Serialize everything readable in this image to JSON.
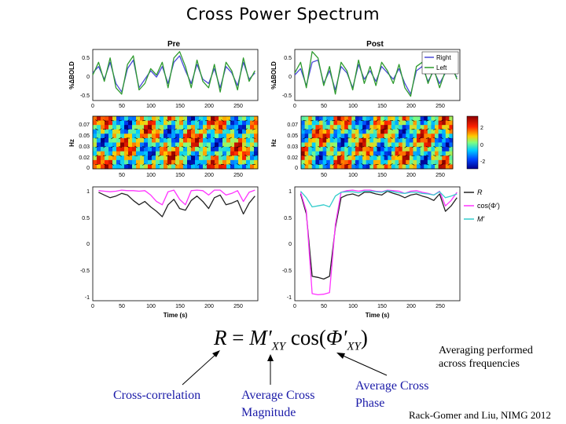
{
  "slide": {
    "title": "Cross Power Spectrum",
    "note_line1": "Averaging performed",
    "note_line2": "across frequencies",
    "label_cross_correlation": "Cross-correlation",
    "label_avg_mag_line1": "Average Cross",
    "label_avg_mag_line2": "Magnitude",
    "label_avg_phase_line1": "Average Cross",
    "label_avg_phase_line2": "Phase",
    "citation": "Rack-Gomer and Liu, NIMG 2012",
    "equation": {
      "lhs": "R",
      "eq": "=",
      "mag": "M′",
      "mag_sub": "XY",
      "cos": "cos(",
      "phi": "Φ′",
      "phi_sub": "XY",
      "close": ")"
    },
    "colors": {
      "annotation_blue": "#1a1aa8",
      "right": "#4a4ad8",
      "left": "#2e9a2e",
      "R": "#222222",
      "cos": "#ff33ff",
      "M": "#33cccc"
    }
  },
  "chart_data": [
    {
      "type": "line",
      "panel": "Pre",
      "title": "Pre",
      "ylabel": "%ΔBOLD",
      "xlim": [
        0,
        285
      ],
      "ylim": [
        -0.6,
        0.6
      ],
      "xticks": [
        "0",
        "50",
        "100",
        "150",
        "200",
        "250"
      ],
      "yticks": [
        "0.5",
        "0",
        "-0.5"
      ],
      "x": [
        0,
        10,
        20,
        30,
        40,
        50,
        60,
        70,
        80,
        90,
        100,
        110,
        120,
        130,
        140,
        150,
        160,
        170,
        180,
        190,
        200,
        210,
        220,
        230,
        240,
        250,
        260,
        270,
        280
      ],
      "series": [
        {
          "name": "Right",
          "values": [
            0.05,
            0.2,
            -0.1,
            0.3,
            -0.2,
            -0.4,
            0.15,
            0.35,
            -0.3,
            -0.1,
            0.1,
            -0.05,
            0.2,
            -0.2,
            0.3,
            0.45,
            0.1,
            -0.2,
            0.25,
            -0.1,
            -0.2,
            0.15,
            -0.3,
            0.2,
            0.05,
            -0.25,
            0.3,
            -0.1,
            0.05
          ]
        },
        {
          "name": "Left",
          "values": [
            0.0,
            0.3,
            -0.15,
            0.4,
            -0.3,
            -0.45,
            0.25,
            0.45,
            -0.35,
            -0.2,
            0.15,
            0.0,
            0.3,
            -0.3,
            0.4,
            0.55,
            0.2,
            -0.3,
            0.35,
            -0.15,
            -0.3,
            0.25,
            -0.4,
            0.3,
            0.1,
            -0.35,
            0.4,
            -0.15,
            0.1
          ]
        }
      ]
    },
    {
      "type": "line",
      "panel": "Post",
      "title": "Post",
      "ylabel": "%ΔBOLD",
      "xlim": [
        0,
        285
      ],
      "ylim": [
        -0.6,
        0.6
      ],
      "xticks": [
        "0",
        "50",
        "100",
        "150",
        "200",
        "250"
      ],
      "yticks": [
        "0.5",
        "0",
        "-0.5"
      ],
      "legend": [
        "Right",
        "Left"
      ],
      "x": [
        0,
        10,
        20,
        30,
        40,
        50,
        60,
        70,
        80,
        90,
        100,
        110,
        120,
        130,
        140,
        150,
        160,
        170,
        180,
        190,
        200,
        210,
        220,
        230,
        240,
        250,
        260,
        270,
        280
      ],
      "series": [
        {
          "name": "Right",
          "values": [
            0.0,
            0.15,
            -0.25,
            0.3,
            0.35,
            -0.2,
            0.1,
            -0.35,
            0.2,
            0.05,
            -0.3,
            0.25,
            -0.1,
            0.1,
            -0.15,
            0.2,
            0.05,
            -0.1,
            0.15,
            -0.2,
            -0.45,
            0.1,
            0.2,
            -0.15,
            0.1,
            -0.2,
            0.05,
            0.15,
            -0.05
          ]
        },
        {
          "name": "Left",
          "values": [
            0.05,
            0.3,
            -0.3,
            0.55,
            0.4,
            -0.25,
            0.2,
            -0.45,
            0.3,
            0.1,
            -0.35,
            0.35,
            -0.2,
            0.2,
            -0.25,
            0.3,
            0.1,
            -0.2,
            0.25,
            -0.3,
            -0.5,
            0.2,
            0.3,
            -0.2,
            0.15,
            -0.3,
            0.1,
            0.25,
            -0.1
          ]
        }
      ]
    },
    {
      "type": "heatmap",
      "panel": "Pre",
      "ylabel": "Hz",
      "xticks": [
        "50",
        "100",
        "150",
        "200",
        "250"
      ],
      "yticks": [
        "0.07",
        "0.05",
        "0.03",
        "0.02",
        "0"
      ],
      "colorbar": {
        "ticks": [
          "2",
          "0",
          "-2"
        ]
      }
    },
    {
      "type": "heatmap",
      "panel": "Post",
      "ylabel": "Hz",
      "xticks": [
        "50",
        "100",
        "150",
        "200",
        "250"
      ],
      "yticks": [
        "0.07",
        "0.05",
        "0.03",
        "0.02",
        "0"
      ]
    },
    {
      "type": "line",
      "panel": "Pre",
      "xlabel": "Time (s)",
      "xlim": [
        0,
        285
      ],
      "ylim": [
        -1.05,
        1.05
      ],
      "xticks": [
        "0",
        "50",
        "100",
        "150",
        "200",
        "250"
      ],
      "yticks": [
        "1",
        "0.5",
        "0",
        "-0.5",
        "-1"
      ],
      "x": [
        10,
        20,
        30,
        40,
        50,
        60,
        70,
        80,
        90,
        100,
        110,
        120,
        130,
        140,
        150,
        160,
        170,
        180,
        190,
        200,
        210,
        220,
        230,
        240,
        250,
        260,
        270,
        280
      ],
      "series": [
        {
          "name": "R",
          "values": [
            0.95,
            0.9,
            0.85,
            0.88,
            0.93,
            0.9,
            0.8,
            0.72,
            0.78,
            0.68,
            0.6,
            0.5,
            0.72,
            0.82,
            0.65,
            0.62,
            0.8,
            0.88,
            0.78,
            0.65,
            0.85,
            0.9,
            0.72,
            0.75,
            0.8,
            0.55,
            0.75,
            0.88
          ]
        },
        {
          "name": "cos(Φ′)",
          "values": [
            0.98,
            0.97,
            0.96,
            0.97,
            0.99,
            0.98,
            0.98,
            0.97,
            0.98,
            0.9,
            0.78,
            0.72,
            0.96,
            0.99,
            0.82,
            0.72,
            0.98,
            0.99,
            0.98,
            0.9,
            0.99,
            0.99,
            0.9,
            0.93,
            0.98,
            0.78,
            0.95,
            0.99
          ]
        }
      ]
    },
    {
      "type": "line",
      "panel": "Post",
      "xlabel": "Time (s)",
      "xlim": [
        0,
        285
      ],
      "ylim": [
        -1.05,
        1.05
      ],
      "xticks": [
        "0",
        "50",
        "100",
        "150",
        "200",
        "250"
      ],
      "yticks": [
        "1",
        "0.5",
        "0",
        "-0.5",
        "-1"
      ],
      "legend": [
        "R",
        "cos(Φ′)",
        "M′"
      ],
      "x": [
        10,
        20,
        30,
        40,
        50,
        60,
        70,
        80,
        90,
        100,
        110,
        120,
        130,
        140,
        150,
        160,
        170,
        180,
        190,
        200,
        210,
        220,
        230,
        240,
        250,
        260,
        270,
        280
      ],
      "series": [
        {
          "name": "R",
          "values": [
            0.92,
            0.55,
            -0.6,
            -0.62,
            -0.65,
            -0.6,
            0.3,
            0.85,
            0.9,
            0.92,
            0.88,
            0.95,
            0.95,
            0.92,
            0.9,
            0.97,
            0.93,
            0.9,
            0.85,
            0.9,
            0.92,
            0.88,
            0.85,
            0.8,
            0.92,
            0.6,
            0.7,
            0.85
          ]
        },
        {
          "name": "cos(Φ′)",
          "values": [
            0.95,
            0.6,
            -0.92,
            -0.94,
            -0.93,
            -0.9,
            0.35,
            0.95,
            0.98,
            0.99,
            0.97,
            0.99,
            0.99,
            0.97,
            0.96,
            0.99,
            0.98,
            0.97,
            0.93,
            0.97,
            0.98,
            0.95,
            0.93,
            0.9,
            0.97,
            0.7,
            0.8,
            0.95
          ]
        },
        {
          "name": "M′",
          "values": [
            0.97,
            0.85,
            0.68,
            0.7,
            0.72,
            0.68,
            0.88,
            0.95,
            0.96,
            0.96,
            0.94,
            0.97,
            0.97,
            0.96,
            0.95,
            0.98,
            0.96,
            0.94,
            0.93,
            0.95,
            0.95,
            0.93,
            0.92,
            0.9,
            0.96,
            0.85,
            0.88,
            0.92
          ]
        }
      ]
    }
  ]
}
